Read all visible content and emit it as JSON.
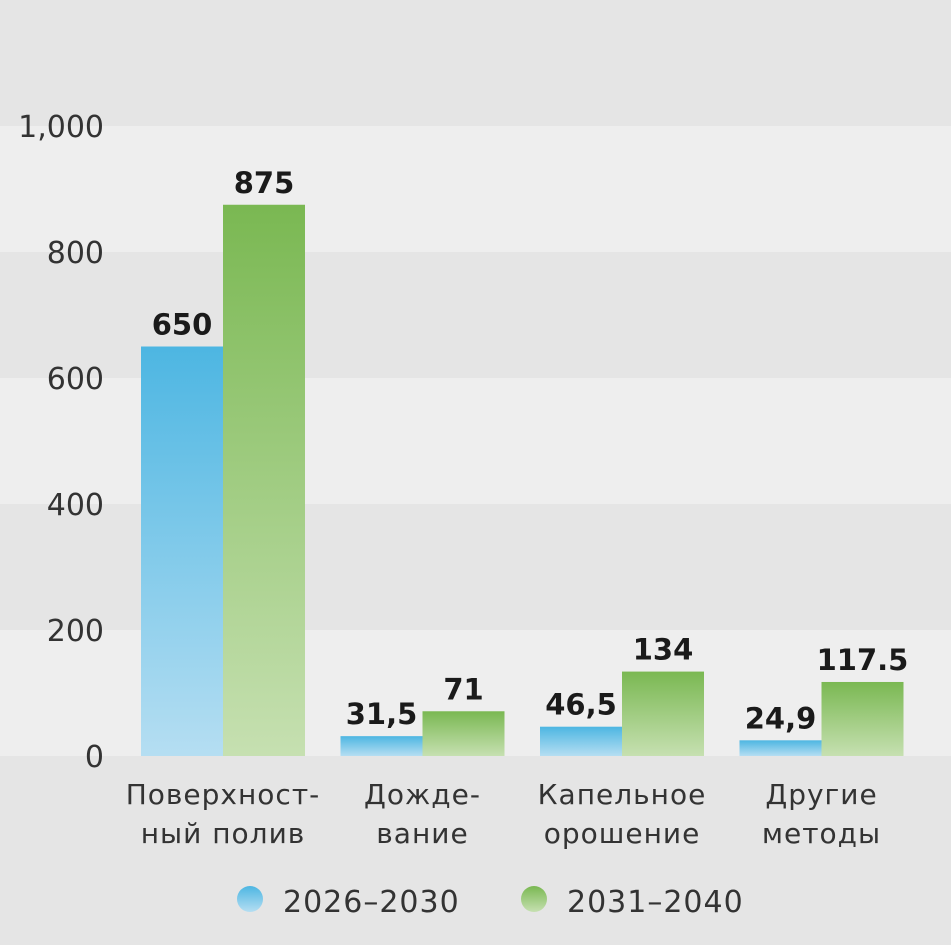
{
  "chart_data": {
    "type": "bar",
    "categories": [
      [
        "Поверхност-",
        "ный полив"
      ],
      [
        "Дожде-",
        "вание"
      ],
      [
        "Капельное",
        "орошение"
      ],
      [
        "Другие",
        "методы"
      ]
    ],
    "series": [
      {
        "name": "2026–2030",
        "values": [
          650,
          31.5,
          46.5,
          24.9
        ],
        "labels": [
          "650",
          "31,5",
          "46,5",
          "24,9"
        ],
        "color": "#4db6e2",
        "color_light": "#b5def2"
      },
      {
        "name": "2031–2040",
        "values": [
          875,
          71,
          134,
          117.5
        ],
        "labels": [
          "875",
          "71",
          "134",
          "117.5"
        ],
        "color": "#7ab852",
        "color_light": "#c6e0b1"
      }
    ],
    "ylim": [
      0,
      1000
    ],
    "yticks": [
      0,
      200,
      400,
      600,
      800,
      1000
    ],
    "ytick_labels": [
      "0",
      "200",
      "400",
      "600",
      "800",
      "1,000"
    ],
    "grid": "alternating bands",
    "legend": "bottom"
  }
}
